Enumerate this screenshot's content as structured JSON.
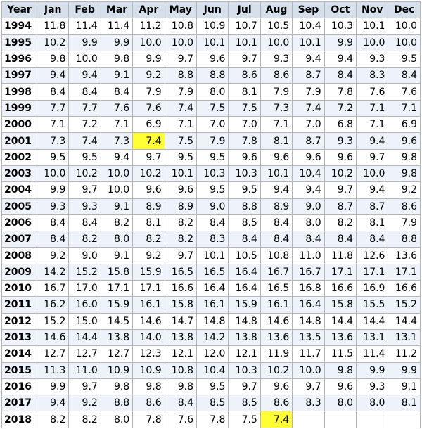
{
  "table": {
    "header": [
      "Year",
      "Jan",
      "Feb",
      "Mar",
      "Apr",
      "May",
      "Jun",
      "Jul",
      "Aug",
      "Sep",
      "Oct",
      "Nov",
      "Dec"
    ],
    "highlight_color": "#ffff33",
    "highlighted_cells": [
      {
        "year": "2001",
        "month": "Apr"
      },
      {
        "year": "2018",
        "month": "Aug"
      }
    ],
    "rows": [
      {
        "year": "1994",
        "values": [
          "11.8",
          "11.4",
          "11.4",
          "11.2",
          "10.8",
          "10.9",
          "10.7",
          "10.5",
          "10.4",
          "10.3",
          "10.1",
          "10.0"
        ]
      },
      {
        "year": "1995",
        "values": [
          "10.2",
          "9.9",
          "9.9",
          "10.0",
          "10.0",
          "10.1",
          "10.1",
          "10.0",
          "10.1",
          "9.9",
          "10.0",
          "10.0"
        ]
      },
      {
        "year": "1996",
        "values": [
          "9.8",
          "10.0",
          "9.8",
          "9.9",
          "9.7",
          "9.6",
          "9.7",
          "9.3",
          "9.4",
          "9.4",
          "9.3",
          "9.5"
        ]
      },
      {
        "year": "1997",
        "values": [
          "9.4",
          "9.4",
          "9.1",
          "9.2",
          "8.8",
          "8.8",
          "8.6",
          "8.6",
          "8.7",
          "8.4",
          "8.3",
          "8.4"
        ]
      },
      {
        "year": "1998",
        "values": [
          "8.4",
          "8.4",
          "8.4",
          "7.9",
          "7.9",
          "8.0",
          "8.1",
          "7.9",
          "7.9",
          "7.8",
          "7.6",
          "7.6"
        ]
      },
      {
        "year": "1999",
        "values": [
          "7.7",
          "7.7",
          "7.6",
          "7.6",
          "7.4",
          "7.5",
          "7.5",
          "7.3",
          "7.4",
          "7.2",
          "7.1",
          "7.1"
        ]
      },
      {
        "year": "2000",
        "values": [
          "7.1",
          "7.2",
          "7.1",
          "6.9",
          "7.1",
          "7.0",
          "7.0",
          "7.1",
          "7.0",
          "6.8",
          "7.1",
          "6.9"
        ]
      },
      {
        "year": "2001",
        "values": [
          "7.3",
          "7.4",
          "7.3",
          "7.4",
          "7.5",
          "7.9",
          "7.8",
          "8.1",
          "8.7",
          "9.3",
          "9.4",
          "9.6"
        ]
      },
      {
        "year": "2002",
        "values": [
          "9.5",
          "9.5",
          "9.4",
          "9.7",
          "9.5",
          "9.5",
          "9.6",
          "9.6",
          "9.6",
          "9.6",
          "9.7",
          "9.8"
        ]
      },
      {
        "year": "2003",
        "values": [
          "10.0",
          "10.2",
          "10.0",
          "10.2",
          "10.1",
          "10.3",
          "10.3",
          "10.1",
          "10.4",
          "10.2",
          "10.0",
          "9.8"
        ]
      },
      {
        "year": "2004",
        "values": [
          "9.9",
          "9.7",
          "10.0",
          "9.6",
          "9.6",
          "9.5",
          "9.5",
          "9.4",
          "9.4",
          "9.7",
          "9.4",
          "9.2"
        ]
      },
      {
        "year": "2005",
        "values": [
          "9.3",
          "9.3",
          "9.1",
          "8.9",
          "8.9",
          "9.0",
          "8.8",
          "8.9",
          "9.0",
          "8.7",
          "8.7",
          "8.6"
        ]
      },
      {
        "year": "2006",
        "values": [
          "8.4",
          "8.4",
          "8.2",
          "8.1",
          "8.2",
          "8.4",
          "8.5",
          "8.4",
          "8.0",
          "8.2",
          "8.1",
          "7.9"
        ]
      },
      {
        "year": "2007",
        "values": [
          "8.4",
          "8.2",
          "8.0",
          "8.2",
          "8.2",
          "8.3",
          "8.4",
          "8.4",
          "8.4",
          "8.4",
          "8.4",
          "8.8"
        ]
      },
      {
        "year": "2008",
        "values": [
          "9.2",
          "9.0",
          "9.1",
          "9.2",
          "9.7",
          "10.1",
          "10.5",
          "10.8",
          "11.0",
          "11.8",
          "12.6",
          "13.6"
        ]
      },
      {
        "year": "2009",
        "values": [
          "14.2",
          "15.2",
          "15.8",
          "15.9",
          "16.5",
          "16.5",
          "16.4",
          "16.7",
          "16.7",
          "17.1",
          "17.1",
          "17.1"
        ]
      },
      {
        "year": "2010",
        "values": [
          "16.7",
          "17.0",
          "17.1",
          "17.1",
          "16.6",
          "16.4",
          "16.4",
          "16.5",
          "16.8",
          "16.6",
          "16.9",
          "16.6"
        ]
      },
      {
        "year": "2011",
        "values": [
          "16.2",
          "16.0",
          "15.9",
          "16.1",
          "15.8",
          "16.1",
          "15.9",
          "16.1",
          "16.4",
          "15.8",
          "15.5",
          "15.2"
        ]
      },
      {
        "year": "2012",
        "values": [
          "15.2",
          "15.0",
          "14.5",
          "14.6",
          "14.7",
          "14.8",
          "14.8",
          "14.6",
          "14.8",
          "14.4",
          "14.4",
          "14.4"
        ]
      },
      {
        "year": "2013",
        "values": [
          "14.6",
          "14.4",
          "13.8",
          "14.0",
          "13.8",
          "14.2",
          "13.8",
          "13.6",
          "13.5",
          "13.6",
          "13.1",
          "13.1"
        ]
      },
      {
        "year": "2014",
        "values": [
          "12.7",
          "12.7",
          "12.7",
          "12.3",
          "12.1",
          "12.0",
          "12.1",
          "11.9",
          "11.7",
          "11.5",
          "11.4",
          "11.2"
        ]
      },
      {
        "year": "2015",
        "values": [
          "11.3",
          "11.0",
          "10.9",
          "10.9",
          "10.8",
          "10.4",
          "10.3",
          "10.2",
          "10.0",
          "9.8",
          "9.9",
          "9.9"
        ]
      },
      {
        "year": "2016",
        "values": [
          "9.9",
          "9.7",
          "9.8",
          "9.8",
          "9.8",
          "9.5",
          "9.7",
          "9.6",
          "9.7",
          "9.6",
          "9.3",
          "9.1"
        ]
      },
      {
        "year": "2017",
        "values": [
          "9.4",
          "9.2",
          "8.8",
          "8.6",
          "8.4",
          "8.5",
          "8.5",
          "8.6",
          "8.3",
          "8.0",
          "8.0",
          "8.1"
        ]
      },
      {
        "year": "2018",
        "values": [
          "8.2",
          "8.2",
          "8.0",
          "7.8",
          "7.6",
          "7.8",
          "7.5",
          "7.4",
          "",
          "",
          "",
          ""
        ]
      }
    ]
  }
}
